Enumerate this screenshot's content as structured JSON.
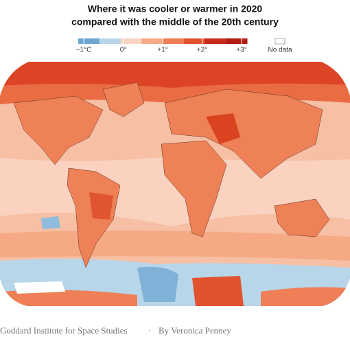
{
  "title": [
    "Where it was cooler or warmer in 2020",
    "compared with the middle of the 20th century"
  ],
  "legend": {
    "ticks": [
      {
        "value": -1,
        "label": "−1°C"
      },
      {
        "value": 0,
        "label": "0°"
      },
      {
        "value": 1,
        "label": "+1°"
      },
      {
        "value": 2,
        "label": "+2°"
      },
      {
        "value": 3,
        "label": "+3°"
      }
    ],
    "colors": [
      "#6ea6cf",
      "#b8d6ea",
      "#fad4c2",
      "#f5ab88",
      "#ee7f56",
      "#e1532f",
      "#c92b1b",
      "#b01d12"
    ],
    "no_data": "No data"
  },
  "credit": {
    "source": "Goddard Institute for Space Studies",
    "separator": "·",
    "author": "By Veronica Penney"
  }
}
